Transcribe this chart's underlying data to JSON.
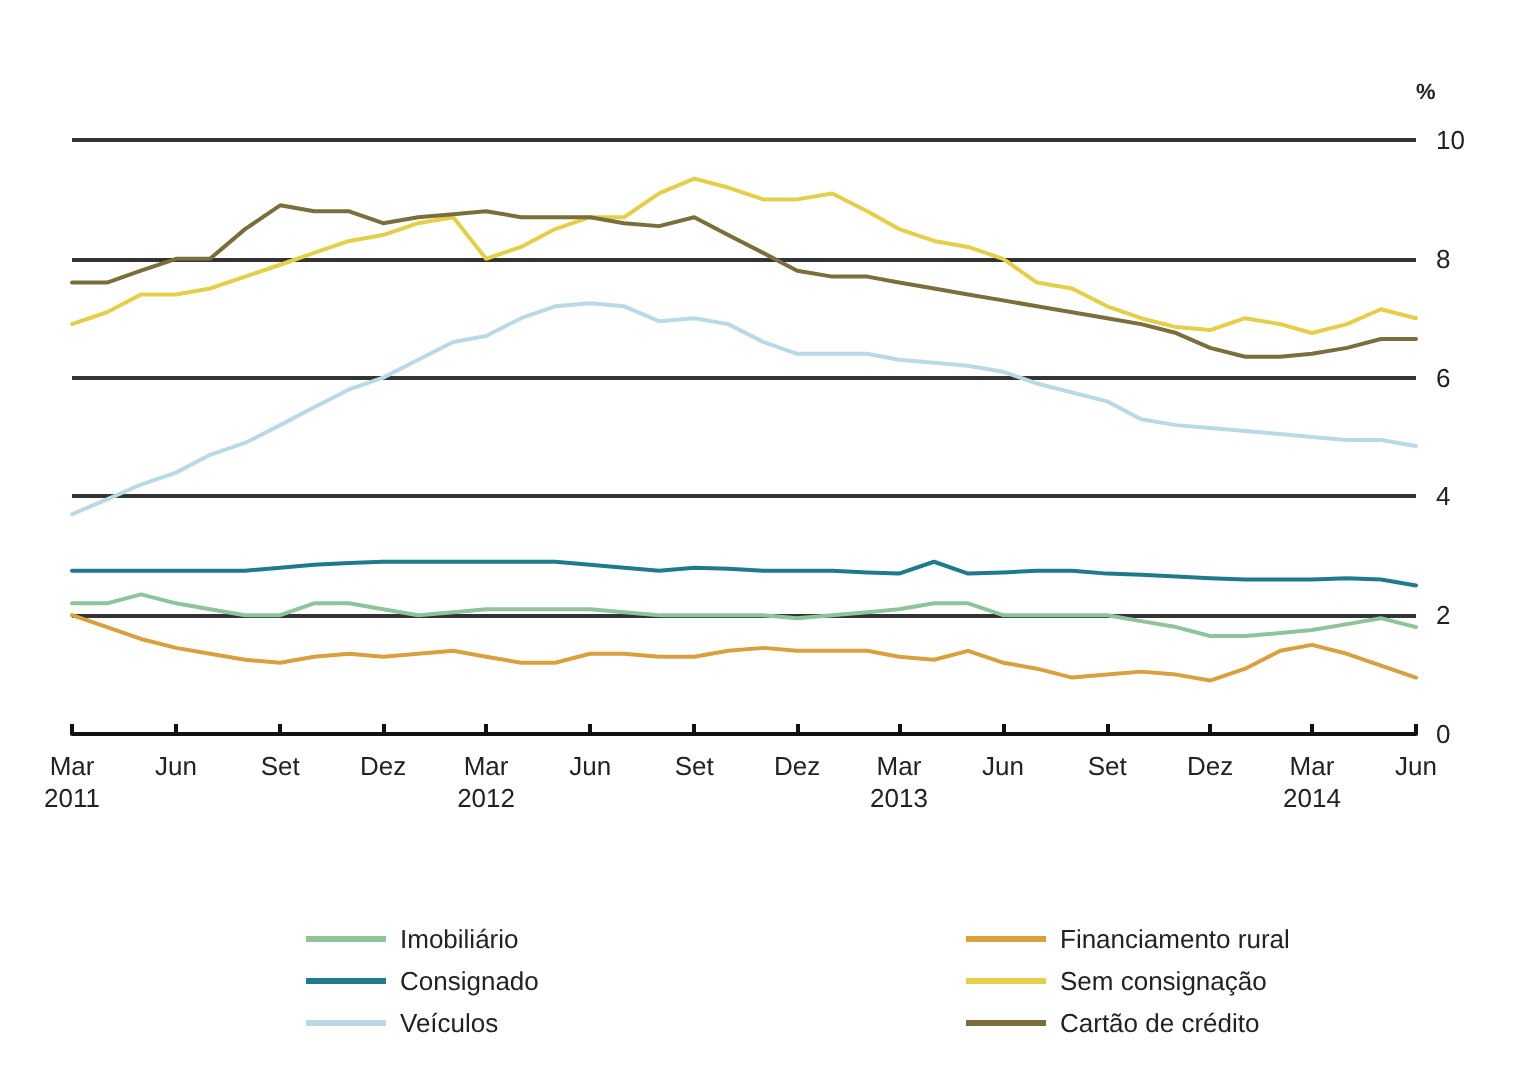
{
  "chart_data": {
    "type": "line",
    "ylabel": "%",
    "x": [
      "2011-03",
      "2011-04",
      "2011-05",
      "2011-06",
      "2011-07",
      "2011-08",
      "2011-09",
      "2011-10",
      "2011-11",
      "2011-12",
      "2012-01",
      "2012-02",
      "2012-03",
      "2012-04",
      "2012-05",
      "2012-06",
      "2012-07",
      "2012-08",
      "2012-09",
      "2012-10",
      "2012-11",
      "2012-12",
      "2013-01",
      "2013-02",
      "2013-03",
      "2013-04",
      "2013-05",
      "2013-06",
      "2013-07",
      "2013-08",
      "2013-09",
      "2013-10",
      "2013-11",
      "2013-12",
      "2014-01",
      "2014-02",
      "2014-03",
      "2014-04",
      "2014-05",
      "2014-06"
    ],
    "series": [
      {
        "name": "Imobiliário",
        "color": "#8fc49a",
        "values": [
          2.2,
          2.2,
          2.35,
          2.2,
          2.1,
          2.0,
          2.0,
          2.2,
          2.2,
          2.1,
          2.0,
          2.05,
          2.1,
          2.1,
          2.1,
          2.1,
          2.05,
          2.0,
          2.0,
          2.0,
          2.0,
          1.95,
          2.0,
          2.05,
          2.1,
          2.2,
          2.2,
          2.0,
          2.0,
          2.0,
          2.0,
          1.9,
          1.8,
          1.65,
          1.65,
          1.7,
          1.75,
          1.85,
          1.95,
          1.8
        ]
      },
      {
        "name": "Consignado",
        "color": "#1f7a8c",
        "values": [
          2.75,
          2.75,
          2.75,
          2.75,
          2.75,
          2.75,
          2.8,
          2.85,
          2.88,
          2.9,
          2.9,
          2.9,
          2.9,
          2.9,
          2.9,
          2.85,
          2.8,
          2.75,
          2.8,
          2.78,
          2.75,
          2.75,
          2.75,
          2.72,
          2.7,
          2.9,
          2.7,
          2.72,
          2.75,
          2.75,
          2.7,
          2.68,
          2.65,
          2.62,
          2.6,
          2.6,
          2.6,
          2.62,
          2.6,
          2.5
        ]
      },
      {
        "name": "Veículos",
        "color": "#b9d9e6",
        "values": [
          3.7,
          3.95,
          4.2,
          4.4,
          4.7,
          4.9,
          5.2,
          5.5,
          5.8,
          6.0,
          6.3,
          6.6,
          6.7,
          7.0,
          7.2,
          7.25,
          7.2,
          6.95,
          7.0,
          6.9,
          6.6,
          6.4,
          6.4,
          6.4,
          6.3,
          6.25,
          6.2,
          6.1,
          5.9,
          5.75,
          5.6,
          5.3,
          5.2,
          5.15,
          5.1,
          5.05,
          5.0,
          4.95,
          4.95,
          4.85
        ]
      },
      {
        "name": "Financiamento rural",
        "color": "#d9a040",
        "values": [
          2.0,
          1.8,
          1.6,
          1.45,
          1.35,
          1.25,
          1.2,
          1.3,
          1.35,
          1.3,
          1.35,
          1.4,
          1.3,
          1.2,
          1.2,
          1.35,
          1.35,
          1.3,
          1.3,
          1.4,
          1.45,
          1.4,
          1.4,
          1.4,
          1.3,
          1.25,
          1.4,
          1.2,
          1.1,
          0.95,
          1.0,
          1.05,
          1.0,
          0.9,
          1.1,
          1.4,
          1.5,
          1.35,
          1.15,
          0.95
        ]
      },
      {
        "name": "Sem consignação",
        "color": "#e3cf4a",
        "values": [
          6.9,
          7.1,
          7.4,
          7.4,
          7.5,
          7.7,
          7.9,
          8.1,
          8.3,
          8.4,
          8.6,
          8.7,
          8.0,
          8.2,
          8.5,
          8.7,
          8.7,
          9.1,
          9.35,
          9.2,
          9.0,
          9.0,
          9.1,
          8.8,
          8.5,
          8.3,
          8.2,
          8.0,
          7.6,
          7.5,
          7.2,
          7.0,
          6.85,
          6.8,
          7.0,
          6.9,
          6.75,
          6.9,
          7.15,
          7.0
        ]
      },
      {
        "name": "Cartão de crédito",
        "color": "#7a6e3a",
        "values": [
          7.6,
          7.6,
          7.8,
          8.0,
          8.0,
          8.5,
          8.9,
          8.8,
          8.8,
          8.6,
          8.7,
          8.75,
          8.8,
          8.7,
          8.7,
          8.7,
          8.6,
          8.55,
          8.7,
          8.4,
          8.1,
          7.8,
          7.7,
          7.7,
          7.6,
          7.5,
          7.4,
          7.3,
          7.2,
          7.1,
          7.0,
          6.9,
          6.75,
          6.5,
          6.35,
          6.35,
          6.4,
          6.5,
          6.65,
          6.65
        ]
      }
    ],
    "xlim": [
      "2011-03",
      "2014-06"
    ],
    "xticks": [
      {
        "value": "2011-03",
        "label": "Mar\n2011"
      },
      {
        "value": "2011-06",
        "label": "Jun"
      },
      {
        "value": "2011-09",
        "label": "Set"
      },
      {
        "value": "2011-12",
        "label": "Dez"
      },
      {
        "value": "2012-03",
        "label": "Mar\n2012"
      },
      {
        "value": "2012-06",
        "label": "Jun"
      },
      {
        "value": "2012-09",
        "label": "Set"
      },
      {
        "value": "2012-12",
        "label": "Dez"
      },
      {
        "value": "2013-03",
        "label": "Mar\n2013"
      },
      {
        "value": "2013-06",
        "label": "Jun"
      },
      {
        "value": "2013-09",
        "label": "Set"
      },
      {
        "value": "2013-12",
        "label": "Dez"
      },
      {
        "value": "2014-03",
        "label": "Mar\n2014"
      },
      {
        "value": "2014-06",
        "label": "Jun"
      }
    ],
    "ylim": [
      0,
      10
    ],
    "yticks": [
      0,
      2,
      4,
      6,
      8,
      10
    ],
    "grid": "y",
    "legend": "bottom",
    "marker": "none",
    "line_style": "solid"
  }
}
